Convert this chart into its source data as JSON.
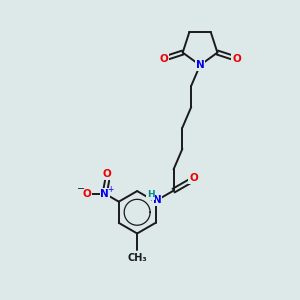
{
  "bg_color": "#dde8e8",
  "bond_color": "#1a1a1a",
  "N_color": "#0000ee",
  "O_color": "#ee0000",
  "H_color": "#008b8b",
  "figsize": [
    3.0,
    3.0
  ],
  "dpi": 100,
  "xlim": [
    0,
    10
  ],
  "ylim": [
    0,
    10
  ]
}
